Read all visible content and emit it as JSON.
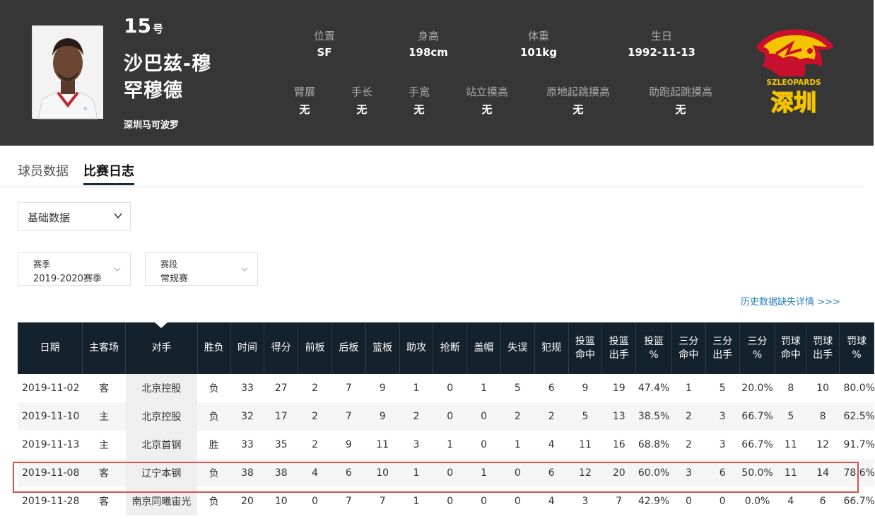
{
  "player": {
    "number": "15",
    "number_suffix": "号",
    "name": "沙巴兹-穆罕穆德",
    "team": "深圳马可波罗",
    "photo_alt": "player-photo"
  },
  "attributes_row1": [
    {
      "label": "位置",
      "value": "SF"
    },
    {
      "label": "身高",
      "value": "198cm"
    },
    {
      "label": "体重",
      "value": "101kg"
    },
    {
      "label": "生日",
      "value": "1992-11-13"
    }
  ],
  "attributes_row2": [
    {
      "label": "臂展",
      "value": "无"
    },
    {
      "label": "手长",
      "value": "无"
    },
    {
      "label": "手宽",
      "value": "无"
    },
    {
      "label": "站立摸高",
      "value": "无"
    },
    {
      "label": "原地起跳摸高",
      "value": "无"
    },
    {
      "label": "助跑起跳摸高",
      "value": "无"
    }
  ],
  "logo": {
    "text_top": "SZLEOPARDS",
    "text_main": "深圳",
    "icon": "leopard-logo"
  },
  "tabs": [
    {
      "label": "球员数据",
      "active": false
    },
    {
      "label": "比赛日志",
      "active": true
    }
  ],
  "stat_type_select": {
    "value": "基础数据"
  },
  "season_select": {
    "label": "赛季",
    "value": "2019-2020赛季"
  },
  "stage_select": {
    "label": "赛段",
    "value": "常规赛"
  },
  "history_link": "历史数据缺失详情 >>>",
  "table": {
    "headers": [
      "日期",
      "主客场",
      "对手",
      "胜负",
      "时间",
      "得分",
      "前板",
      "后板",
      "篮板",
      "助攻",
      "抢断",
      "盖帽",
      "失误",
      "犯规",
      "投篮\n命中",
      "投篮\n出手",
      "投篮\n%",
      "三分\n命中",
      "三分\n出手",
      "三分\n%",
      "罚球\n命中",
      "罚球\n出手",
      "罚球\n%"
    ],
    "rows": [
      [
        "2019-11-02",
        "客",
        "北京控股",
        "负",
        "33",
        "27",
        "2",
        "7",
        "9",
        "1",
        "0",
        "1",
        "5",
        "6",
        "9",
        "19",
        "47.4%",
        "1",
        "5",
        "20.0%",
        "8",
        "10",
        "80.0%"
      ],
      [
        "2019-11-10",
        "主",
        "北京控股",
        "负",
        "32",
        "17",
        "2",
        "7",
        "9",
        "2",
        "0",
        "0",
        "2",
        "2",
        "5",
        "13",
        "38.5%",
        "2",
        "3",
        "66.7%",
        "5",
        "8",
        "62.5%"
      ],
      [
        "2019-11-13",
        "主",
        "北京首钢",
        "胜",
        "33",
        "35",
        "2",
        "9",
        "11",
        "3",
        "1",
        "0",
        "1",
        "4",
        "11",
        "16",
        "68.8%",
        "2",
        "3",
        "66.7%",
        "11",
        "12",
        "91.7%"
      ],
      [
        "2019-11-08",
        "客",
        "辽宁本钢",
        "负",
        "38",
        "38",
        "4",
        "6",
        "10",
        "1",
        "0",
        "1",
        "0",
        "6",
        "12",
        "20",
        "60.0%",
        "3",
        "6",
        "50.0%",
        "11",
        "14",
        "78.6%"
      ],
      [
        "2019-11-28",
        "客",
        "南京同曦宙光",
        "负",
        "20",
        "10",
        "0",
        "7",
        "7",
        "1",
        "0",
        "0",
        "0",
        "4",
        "3",
        "7",
        "42.9%",
        "0",
        "0",
        "0.0%",
        "4",
        "6",
        "66.7%"
      ]
    ],
    "highlighted_row": 3
  },
  "colors": {
    "header_bg": "#363636",
    "table_header_bg": "#14222e",
    "link": "#2a7fb8",
    "highlight": "#d9534f",
    "logo_red": "#c8102e",
    "logo_yellow": "#f5c400"
  }
}
